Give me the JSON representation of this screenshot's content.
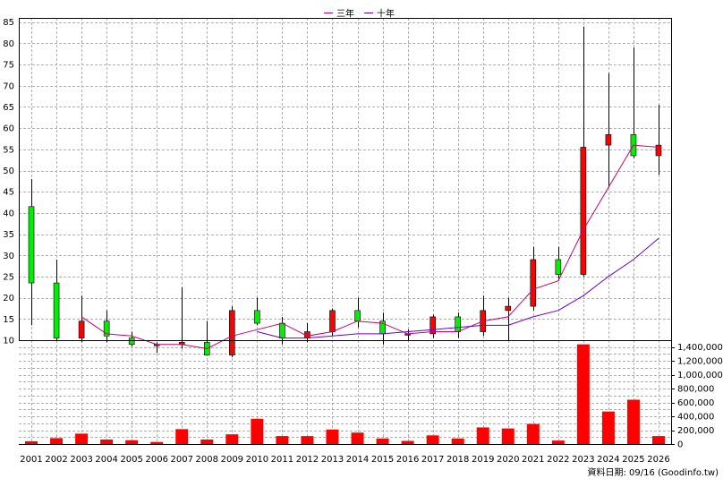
{
  "chart_data": [
    {
      "type": "candlestick",
      "legend": [
        {
          "name": "三年",
          "color": "#cc0066"
        },
        {
          "name": "十年",
          "color": "#6600cc"
        }
      ],
      "legend_position": "top-center",
      "grid": true,
      "ylim": [
        10,
        86
      ],
      "y_ticks": [
        10,
        15,
        20,
        25,
        30,
        35,
        40,
        45,
        50,
        55,
        60,
        65,
        70,
        75,
        80,
        85
      ],
      "colors": {
        "up": "#ff0000",
        "down": "#00ee00",
        "wick": "#000000"
      },
      "categories": [
        "2001",
        "2002",
        "2003",
        "2004",
        "2005",
        "2006",
        "2007",
        "2008",
        "2009",
        "2010",
        "2011",
        "2012",
        "2013",
        "2014",
        "2015",
        "2016",
        "2017",
        "2018",
        "2019",
        "2020",
        "2021",
        "2022",
        "2023",
        "2024",
        "2025",
        "2026"
      ],
      "ohlc": [
        {
          "open": 41.5,
          "high": 48,
          "low": 13.5,
          "close": 23.5
        },
        {
          "open": 23.5,
          "high": 29,
          "low": 10,
          "close": 10.5
        },
        {
          "open": 10.5,
          "high": 20.5,
          "low": 9.5,
          "close": 14.5
        },
        {
          "open": 14.5,
          "high": 17,
          "low": 9.5,
          "close": 11
        },
        {
          "open": 10.5,
          "high": 12,
          "low": 8.5,
          "close": 9
        },
        {
          "open": 9,
          "high": 9.5,
          "low": 7,
          "close": 9
        },
        {
          "open": 9,
          "high": 22.5,
          "low": 8,
          "close": 9.5
        },
        {
          "open": 9.5,
          "high": 14.5,
          "low": 6.5,
          "close": 6.5
        },
        {
          "open": 6.5,
          "high": 18,
          "low": 6,
          "close": 17
        },
        {
          "open": 17,
          "high": 20,
          "low": 13.5,
          "close": 14
        },
        {
          "open": 14,
          "high": 15.5,
          "low": 9,
          "close": 10.5
        },
        {
          "open": 10.5,
          "high": 14,
          "low": 9.5,
          "close": 12
        },
        {
          "open": 12,
          "high": 17.5,
          "low": 11,
          "close": 17
        },
        {
          "open": 17,
          "high": 20,
          "low": 13,
          "close": 14.5
        },
        {
          "open": 14.5,
          "high": 16.5,
          "low": 9,
          "close": 11.5
        },
        {
          "open": 11.5,
          "high": 12.5,
          "low": 10,
          "close": 11.5
        },
        {
          "open": 11.5,
          "high": 16,
          "low": 10.5,
          "close": 15.5
        },
        {
          "open": 15.5,
          "high": 16.5,
          "low": 10.5,
          "close": 12
        },
        {
          "open": 12,
          "high": 20.5,
          "low": 11,
          "close": 17
        },
        {
          "open": 17,
          "high": 20,
          "low": 10,
          "close": 18
        },
        {
          "open": 18,
          "high": 32,
          "low": 17,
          "close": 29
        },
        {
          "open": 29,
          "high": 32,
          "low": 24,
          "close": 25.5
        },
        {
          "open": 25.5,
          "high": 84,
          "low": 25,
          "close": 55.5
        },
        {
          "open": 56,
          "high": 73,
          "low": 46,
          "close": 58.5
        },
        {
          "open": 58.5,
          "high": 79,
          "low": 53,
          "close": 53.5
        },
        {
          "open": 53.5,
          "high": 65.5,
          "low": 49,
          "close": 56
        }
      ],
      "series": [
        {
          "name": "三年",
          "values": [
            null,
            null,
            15.5,
            11.5,
            11,
            9,
            9,
            8,
            11,
            12.5,
            14,
            11,
            12,
            14.5,
            14,
            11.5,
            12,
            12,
            14.5,
            15.5,
            22,
            24,
            36,
            46,
            56,
            55.5
          ]
        },
        {
          "name": "十年",
          "values": [
            null,
            null,
            null,
            null,
            null,
            null,
            null,
            null,
            null,
            12,
            10.5,
            10.5,
            11,
            11.5,
            11.5,
            12,
            12.5,
            13,
            13.5,
            13.5,
            15.5,
            17,
            20.5,
            25,
            29,
            34
          ]
        }
      ]
    },
    {
      "type": "bar",
      "color": "#ff0000",
      "grid": true,
      "ylim": [
        0,
        1500000
      ],
      "y_tick_labels": [
        "1,400,000",
        "1,200,000",
        "1,000,000",
        "800,000",
        "600,000",
        "400,000",
        "200,000",
        "0"
      ],
      "y_tick_values": [
        1400000,
        1200000,
        1000000,
        800000,
        600000,
        400000,
        200000,
        0
      ],
      "categories": [
        "2001",
        "2002",
        "2003",
        "2004",
        "2005",
        "2006",
        "2007",
        "2008",
        "2009",
        "2010",
        "2011",
        "2012",
        "2013",
        "2014",
        "2015",
        "2016",
        "2017",
        "2018",
        "2019",
        "2020",
        "2021",
        "2022",
        "2023",
        "2024",
        "2025",
        "2026"
      ],
      "values": [
        40000,
        85000,
        150000,
        65000,
        55000,
        30000,
        215000,
        65000,
        140000,
        365000,
        115000,
        115000,
        210000,
        165000,
        80000,
        45000,
        125000,
        80000,
        240000,
        225000,
        290000,
        50000,
        1440000,
        470000,
        640000,
        115000
      ]
    }
  ],
  "footer": "資料日期: 09/16 (Goodinfo.tw)"
}
